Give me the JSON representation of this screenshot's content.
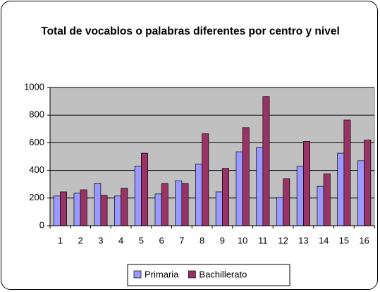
{
  "chart_data": {
    "type": "bar",
    "title": "Total de vocablos o palabras diferentes por centro y nivel",
    "categories": [
      "1",
      "2",
      "3",
      "4",
      "5",
      "6",
      "7",
      "8",
      "9",
      "10",
      "11",
      "12",
      "13",
      "14",
      "15",
      "16"
    ],
    "series": [
      {
        "name": "Primaria",
        "color": "#9999ff",
        "values": [
          215,
          235,
          305,
          215,
          430,
          230,
          325,
          445,
          245,
          535,
          565,
          205,
          430,
          285,
          525,
          470
        ]
      },
      {
        "name": "Bachillerato",
        "color": "#993366",
        "values": [
          245,
          260,
          220,
          270,
          525,
          305,
          305,
          665,
          415,
          710,
          935,
          340,
          610,
          375,
          765,
          620
        ]
      }
    ],
    "ylim": [
      0,
      1000
    ],
    "yticks": [
      0,
      200,
      400,
      600,
      800,
      1000
    ],
    "grid": true,
    "legend": "bottom"
  }
}
